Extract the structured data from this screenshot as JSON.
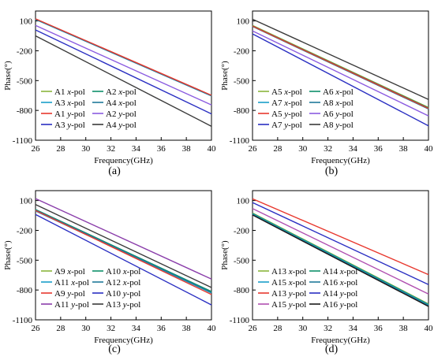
{
  "chart_data": [
    {
      "type": "line",
      "panel_label": "(a)",
      "xlabel": "Frequency(GHz)",
      "ylabel": "Phase(°)",
      "xlim": [
        26,
        40
      ],
      "ylim": [
        -1100,
        200
      ],
      "xticks": [
        "26",
        "28",
        "30",
        "32",
        "34",
        "36",
        "38",
        "40"
      ],
      "yticks": [
        "100",
        "-200",
        "-500",
        "-800",
        "-1100"
      ],
      "legend": "bottom-left, 2 columns",
      "series": [
        {
          "label": "A1",
          "pol": "x-pol",
          "color": "#8BB53C",
          "values": [
            120,
            -650
          ]
        },
        {
          "label": "A2",
          "pol": "x-pol",
          "color": "#0F8F6A",
          "values": [
            120,
            -650
          ]
        },
        {
          "label": "A3",
          "pol": "x-pol",
          "color": "#1A9FC9",
          "values": [
            115,
            -655
          ]
        },
        {
          "label": "A4",
          "pol": "x-pol",
          "color": "#1F7A9A",
          "values": [
            118,
            -652
          ]
        },
        {
          "label": "A1",
          "pol": "y-pol",
          "color": "#E8382E",
          "values": [
            122,
            -648
          ]
        },
        {
          "label": "A2",
          "pol": "y-pol",
          "color": "#8A5BE0",
          "values": [
            55,
            -745
          ]
        },
        {
          "label": "A3",
          "pol": "y-pol",
          "color": "#2A2FC2",
          "values": [
            10,
            -835
          ]
        },
        {
          "label": "A4",
          "pol": "y-pol",
          "color": "#3A3A3A",
          "values": [
            -50,
            -960
          ]
        }
      ]
    },
    {
      "type": "line",
      "panel_label": "(b)",
      "xlabel": "Frequency(GHz)",
      "ylabel": "Phase(°)",
      "xlim": [
        26,
        40
      ],
      "ylim": [
        -1100,
        200
      ],
      "xticks": [
        "26",
        "28",
        "30",
        "32",
        "34",
        "36",
        "38",
        "40"
      ],
      "yticks": [
        "100",
        "-200",
        "-500",
        "-800",
        "-1100"
      ],
      "legend": "bottom-left, 2 columns",
      "series": [
        {
          "label": "A5",
          "pol": "x-pol",
          "color": "#8BB53C",
          "values": [
            55,
            -770
          ]
        },
        {
          "label": "A6",
          "pol": "x-pol",
          "color": "#0F8F6A",
          "values": [
            50,
            -775
          ]
        },
        {
          "label": "A7",
          "pol": "x-pol",
          "color": "#1A9FC9",
          "values": [
            45,
            -785
          ]
        },
        {
          "label": "A8",
          "pol": "x-pol",
          "color": "#1F7A9A",
          "values": [
            45,
            -785
          ]
        },
        {
          "label": "A5",
          "pol": "y-pol",
          "color": "#E8382E",
          "values": [
            48,
            -780
          ]
        },
        {
          "label": "A6",
          "pol": "y-pol",
          "color": "#8A5BE0",
          "values": [
            0,
            -855
          ]
        },
        {
          "label": "A7",
          "pol": "y-pol",
          "color": "#2A2FC2",
          "values": [
            -30,
            -955
          ]
        },
        {
          "label": "A8",
          "pol": "y-pol",
          "color": "#3A3A3A",
          "values": [
            118,
            -690
          ]
        }
      ]
    },
    {
      "type": "line",
      "panel_label": "(c)",
      "xlabel": "Frequency(GHz)",
      "ylabel": "Phase(°)",
      "xlim": [
        26,
        40
      ],
      "ylim": [
        -1100,
        200
      ],
      "xticks": [
        "26",
        "28",
        "30",
        "32",
        "34",
        "36",
        "38",
        "40"
      ],
      "yticks": [
        "100",
        "-200",
        "-500",
        "-800",
        "-1100"
      ],
      "legend": "bottom-left, 2 columns",
      "series": [
        {
          "label": "A9",
          "pol": "x-pol",
          "color": "#8BB53C",
          "values": [
            10,
            -820
          ]
        },
        {
          "label": "A10",
          "pol": "x-pol",
          "color": "#0F8F6A",
          "values": [
            10,
            -815
          ]
        },
        {
          "label": "A11",
          "pol": "x-pol",
          "color": "#1A9FC9",
          "values": [
            -5,
            -830
          ]
        },
        {
          "label": "A12",
          "pol": "x-pol",
          "color": "#1F7A9A",
          "values": [
            5,
            -825
          ]
        },
        {
          "label": "A9",
          "pol": "y-pol",
          "color": "#E8382E",
          "values": [
            0,
            -845
          ]
        },
        {
          "label": "A10",
          "pol": "y-pol",
          "color": "#2A2FC2",
          "values": [
            -40,
            -950
          ]
        },
        {
          "label": "A11",
          "pol": "y-pol",
          "color": "#8A3DAA",
          "values": [
            120,
            -690
          ]
        },
        {
          "label": "A13",
          "pol": "y-pol",
          "color": "#3A3A3A",
          "values": [
            60,
            -775
          ]
        }
      ]
    },
    {
      "type": "line",
      "panel_label": "(d)",
      "xlabel": "Frequency(GHz)",
      "ylabel": "Phase(°)",
      "xlim": [
        26,
        40
      ],
      "ylim": [
        -1100,
        200
      ],
      "xticks": [
        "26",
        "28",
        "30",
        "32",
        "34",
        "36",
        "38",
        "40"
      ],
      "yticks": [
        "100",
        "-200",
        "-500",
        "-800",
        "-1100"
      ],
      "legend": "bottom-left, 2 columns",
      "series": [
        {
          "label": "A13",
          "pol": "x-pol",
          "color": "#8BB53C",
          "values": [
            -25,
            -940
          ]
        },
        {
          "label": "A14",
          "pol": "x-pol",
          "color": "#0F8F6A",
          "values": [
            -30,
            -945
          ]
        },
        {
          "label": "A15",
          "pol": "x-pol",
          "color": "#1A9FC9",
          "values": [
            -35,
            -950
          ]
        },
        {
          "label": "A16",
          "pol": "x-pol",
          "color": "#1F7A9A",
          "values": [
            -40,
            -955
          ]
        },
        {
          "label": "A13",
          "pol": "y-pol",
          "color": "#E8382E",
          "values": [
            118,
            -645
          ]
        },
        {
          "label": "A14",
          "pol": "y-pol",
          "color": "#2A2FC2",
          "values": [
            80,
            -745
          ]
        },
        {
          "label": "A15",
          "pol": "y-pol",
          "color": "#B04FB0",
          "values": [
            20,
            -840
          ]
        },
        {
          "label": "A16",
          "pol": "y-pol",
          "color": "#1A1A1A",
          "values": [
            -45,
            -965
          ]
        }
      ]
    }
  ]
}
